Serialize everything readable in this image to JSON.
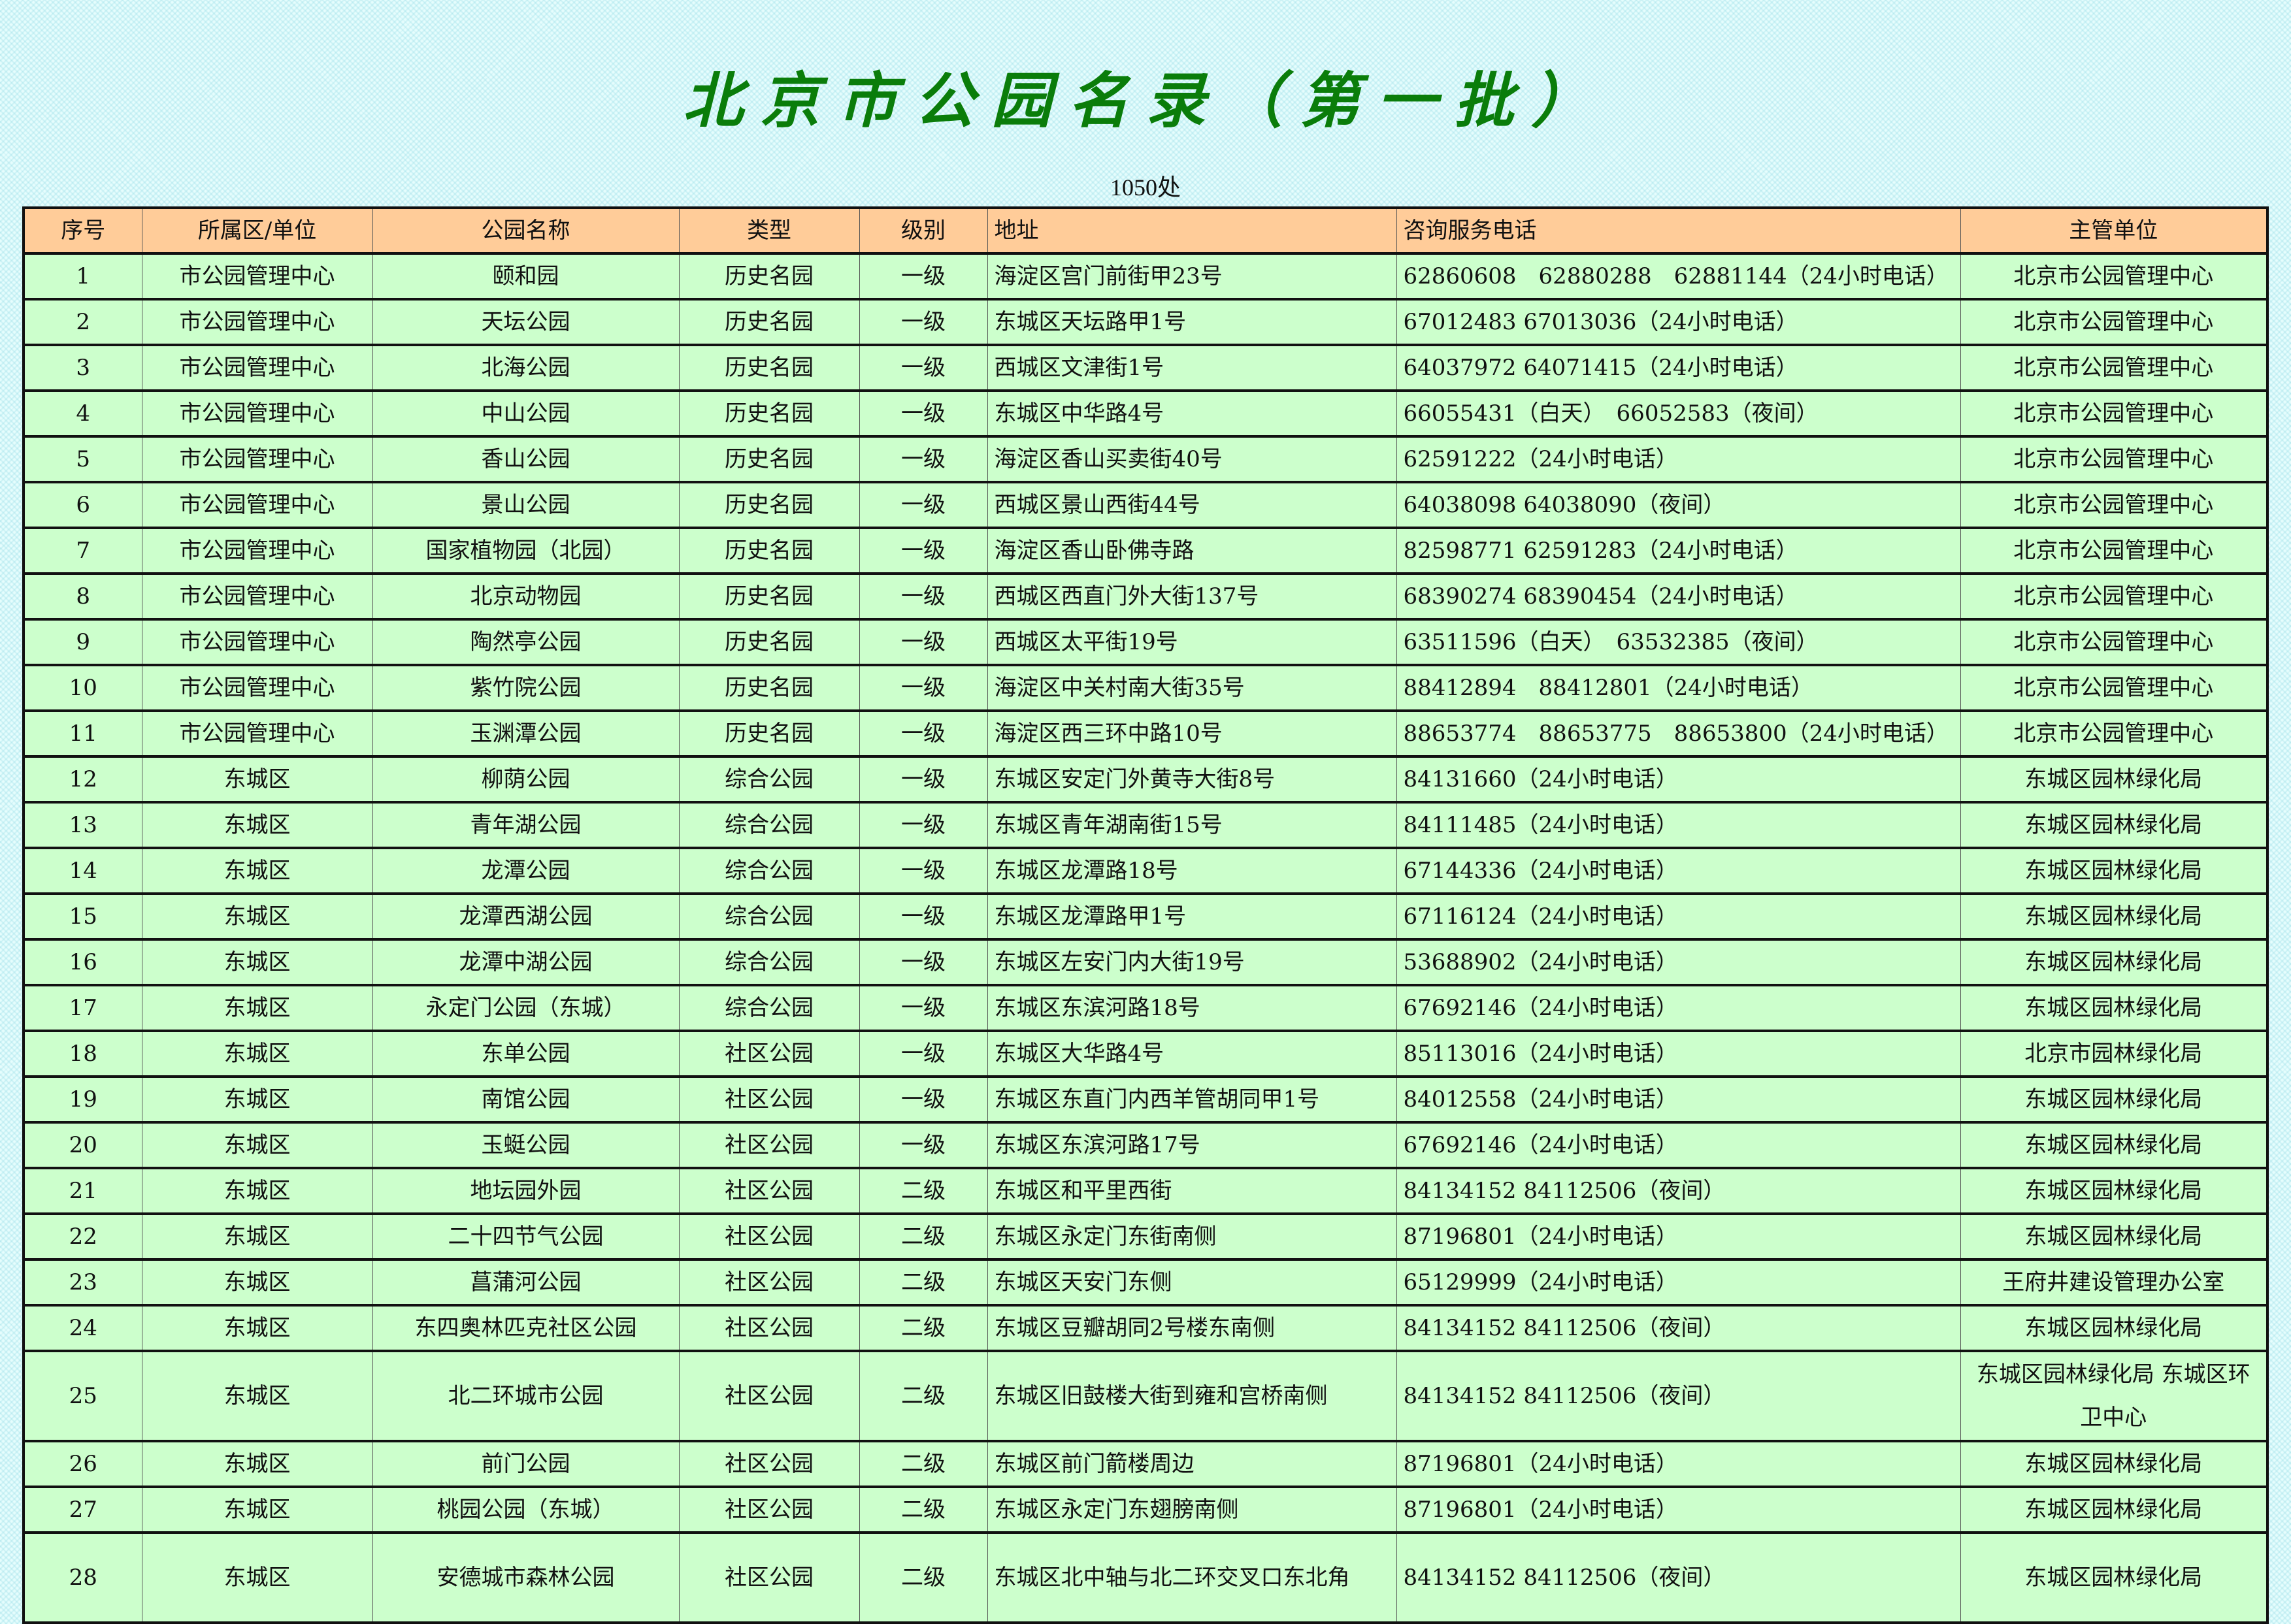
{
  "title": "北京市公园名录（第一批）",
  "subtitle": "1050处",
  "colors": {
    "title": "#0a7d0a",
    "header_bg": "#ffcc99",
    "row_bg": "#ccffcc"
  },
  "columns": [
    "序号",
    "所属区/单位",
    "公园名称",
    "类型",
    "级别",
    "地址",
    "咨询服务电话",
    "主管单位"
  ],
  "rows": [
    [
      "1",
      "市公园管理中心",
      "颐和园",
      "历史名园",
      "一级",
      "海淀区宫门前街甲23号",
      "62860608　62880288　62881144（24小时电话）",
      "北京市公园管理中心"
    ],
    [
      "2",
      "市公园管理中心",
      "天坛公园",
      "历史名园",
      "一级",
      "东城区天坛路甲1号",
      "67012483 67013036（24小时电话）",
      "北京市公园管理中心"
    ],
    [
      "3",
      "市公园管理中心",
      "北海公园",
      "历史名园",
      "一级",
      "西城区文津街1号",
      "64037972 64071415（24小时电话）",
      "北京市公园管理中心"
    ],
    [
      "4",
      "市公园管理中心",
      "中山公园",
      "历史名园",
      "一级",
      "东城区中华路4号",
      "66055431（白天）　66052583（夜间）",
      "北京市公园管理中心"
    ],
    [
      "5",
      "市公园管理中心",
      "香山公园",
      "历史名园",
      "一级",
      "海淀区香山买卖街40号",
      "62591222（24小时电话）",
      "北京市公园管理中心"
    ],
    [
      "6",
      "市公园管理中心",
      "景山公园",
      "历史名园",
      "一级",
      "西城区景山西街44号",
      "64038098 64038090（夜间）",
      "北京市公园管理中心"
    ],
    [
      "7",
      "市公园管理中心",
      "国家植物园（北园）",
      "历史名园",
      "一级",
      "海淀区香山卧佛寺路",
      "82598771 62591283（24小时电话）",
      "北京市公园管理中心"
    ],
    [
      "8",
      "市公园管理中心",
      "北京动物园",
      "历史名园",
      "一级",
      "西城区西直门外大街137号",
      "68390274 68390454（24小时电话）",
      "北京市公园管理中心"
    ],
    [
      "9",
      "市公园管理中心",
      "陶然亭公园",
      "历史名园",
      "一级",
      "西城区太平街19号",
      "63511596（白天）　63532385（夜间）",
      "北京市公园管理中心"
    ],
    [
      "10",
      "市公园管理中心",
      "紫竹院公园",
      "历史名园",
      "一级",
      "海淀区中关村南大街35号",
      "88412894　88412801（24小时电话）",
      "北京市公园管理中心"
    ],
    [
      "11",
      "市公园管理中心",
      "玉渊潭公园",
      "历史名园",
      "一级",
      "海淀区西三环中路10号",
      "88653774　88653775　88653800（24小时电话）",
      "北京市公园管理中心"
    ],
    [
      "12",
      "东城区",
      "柳荫公园",
      "综合公园",
      "一级",
      "东城区安定门外黄寺大街8号",
      "84131660（24小时电话）",
      "东城区园林绿化局"
    ],
    [
      "13",
      "东城区",
      "青年湖公园",
      "综合公园",
      "一级",
      "东城区青年湖南街15号",
      "84111485（24小时电话）",
      "东城区园林绿化局"
    ],
    [
      "14",
      "东城区",
      "龙潭公园",
      "综合公园",
      "一级",
      "东城区龙潭路18号",
      "67144336（24小时电话）",
      "东城区园林绿化局"
    ],
    [
      "15",
      "东城区",
      "龙潭西湖公园",
      "综合公园",
      "一级",
      "东城区龙潭路甲1号",
      "67116124（24小时电话）",
      "东城区园林绿化局"
    ],
    [
      "16",
      "东城区",
      "龙潭中湖公园",
      "综合公园",
      "一级",
      "东城区左安门内大街19号",
      "53688902（24小时电话）",
      "东城区园林绿化局"
    ],
    [
      "17",
      "东城区",
      "永定门公园（东城）",
      "综合公园",
      "一级",
      "东城区东滨河路18号",
      "67692146（24小时电话）",
      "东城区园林绿化局"
    ],
    [
      "18",
      "东城区",
      "东单公园",
      "社区公园",
      "一级",
      "东城区大华路4号",
      "85113016（24小时电话）",
      "北京市园林绿化局"
    ],
    [
      "19",
      "东城区",
      "南馆公园",
      "社区公园",
      "一级",
      "东城区东直门内西羊管胡同甲1号",
      "84012558（24小时电话）",
      "东城区园林绿化局"
    ],
    [
      "20",
      "东城区",
      "玉蜓公园",
      "社区公园",
      "一级",
      "东城区东滨河路17号",
      "67692146（24小时电话）",
      "东城区园林绿化局"
    ],
    [
      "21",
      "东城区",
      "地坛园外园",
      "社区公园",
      "二级",
      "东城区和平里西街",
      "84134152 84112506（夜间）",
      "东城区园林绿化局"
    ],
    [
      "22",
      "东城区",
      "二十四节气公园",
      "社区公园",
      "二级",
      "东城区永定门东街南侧",
      "87196801（24小时电话）",
      "东城区园林绿化局"
    ],
    [
      "23",
      "东城区",
      "菖蒲河公园",
      "社区公园",
      "二级",
      "东城区天安门东侧",
      "65129999（24小时电话）",
      "王府井建设管理办公室"
    ],
    [
      "24",
      "东城区",
      "东四奥林匹克社区公园",
      "社区公园",
      "二级",
      "东城区豆瓣胡同2号楼东南侧",
      "84134152 84112506（夜间）",
      "东城区园林绿化局"
    ],
    [
      "25",
      "东城区",
      "北二环城市公园",
      "社区公园",
      "二级",
      "东城区旧鼓楼大街到雍和宫桥南侧",
      "84134152 84112506（夜间）",
      "东城区园林绿化局 东城区环卫中心"
    ],
    [
      "26",
      "东城区",
      "前门公园",
      "社区公园",
      "二级",
      "东城区前门箭楼周边",
      "87196801（24小时电话）",
      "东城区园林绿化局"
    ],
    [
      "27",
      "东城区",
      "桃园公园（东城）",
      "社区公园",
      "二级",
      "东城区永定门东翅膀南侧",
      "87196801（24小时电话）",
      "东城区园林绿化局"
    ],
    [
      "28",
      "东城区",
      "安德城市森林公园",
      "社区公园",
      "二级",
      "东城区北中轴与北二环交叉口东北角",
      "84134152 84112506（夜间）",
      "东城区园林绿化局"
    ]
  ]
}
